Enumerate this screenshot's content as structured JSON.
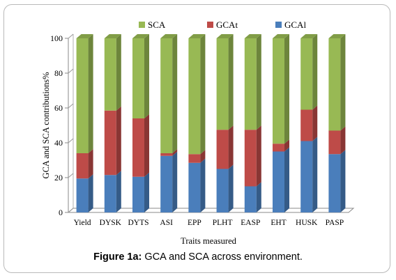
{
  "chart_data": {
    "type": "bar",
    "stacked": true,
    "three_d": true,
    "categories": [
      "Yield",
      "DYSK",
      "DYTS",
      "ASI",
      "EPP",
      "PLHT",
      "EASP",
      "EHT",
      "HUSK",
      "PASP"
    ],
    "series": [
      {
        "name": "GCAl",
        "color": "#4a7ebb",
        "values": [
          19.5,
          21.5,
          20.5,
          32.5,
          28.5,
          25,
          15,
          35,
          41,
          33.5
        ]
      },
      {
        "name": "GCAt",
        "color": "#be4b48",
        "values": [
          14.5,
          37,
          33.5,
          1.5,
          5,
          22.5,
          32.5,
          4.5,
          18,
          13.5
        ]
      },
      {
        "name": "SCA",
        "color": "#98b954",
        "values": [
          66,
          41.5,
          46,
          66,
          66.5,
          52.5,
          52.5,
          60.5,
          41,
          53
        ]
      }
    ],
    "legend_order": [
      "SCA",
      "GCAt",
      "GCAl"
    ],
    "legend_position": "top",
    "xlabel": "Traits measured",
    "ylabel": "GCA and SCA contributions%",
    "ylim": [
      0,
      100
    ],
    "yticks": [
      0,
      20,
      40,
      60,
      80,
      100
    ],
    "grid": false
  },
  "caption": {
    "label": "Figure 1a:",
    "text": " GCA and SCA across environment."
  }
}
